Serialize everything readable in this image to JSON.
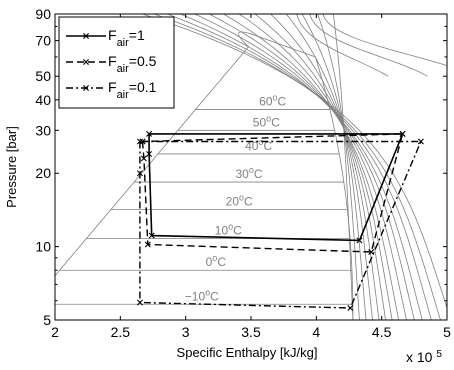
{
  "chart_data": {
    "type": "line",
    "title": "",
    "xlabel": "Specific Enthalpy [kJ/kg]",
    "ylabel": "Pressure [bar]",
    "x_multiplier": "x 10",
    "x_multiplier_exp": "5",
    "xlim": [
      2,
      5
    ],
    "ylim": [
      5,
      90
    ],
    "yscale": "log",
    "xticks": [
      2,
      2.5,
      3,
      3.5,
      4,
      4.5,
      5
    ],
    "xtick_labels": [
      "2",
      "2.5",
      "3",
      "3.5",
      "4",
      "4.5",
      "5"
    ],
    "yticks": [
      5,
      10,
      20,
      30,
      40,
      50,
      70,
      90
    ],
    "ytick_labels": [
      "5",
      "10",
      "20",
      "30",
      "40",
      "50",
      "70",
      "90"
    ],
    "grid": false,
    "legend_position": "top-left",
    "series": [
      {
        "name": "F",
        "sub": "air",
        "suffix": "=1",
        "style": "solid",
        "color": "#000000",
        "x": [
          2.72,
          2.72,
          2.74,
          4.33,
          4.66,
          2.72
        ],
        "y": [
          29.0,
          24.0,
          11.1,
          10.6,
          29.0,
          29.0
        ]
      },
      {
        "name": "F",
        "sub": "air",
        "suffix": "=0.5",
        "style": "dashed",
        "color": "#000000",
        "x": [
          2.67,
          2.68,
          2.71,
          4.42,
          4.66,
          2.67
        ],
        "y": [
          27.0,
          23.0,
          10.2,
          9.5,
          29.0,
          27.0
        ]
      },
      {
        "name": "F",
        "sub": "air",
        "suffix": "=0.1",
        "style": "dashdot",
        "color": "#000000",
        "x": [
          2.65,
          2.65,
          2.65,
          4.26,
          4.8,
          2.65
        ],
        "y": [
          27.0,
          20.0,
          5.9,
          5.6,
          27.0,
          27.0
        ]
      }
    ],
    "isotherms": [
      {
        "label": "60",
        "unit": "C",
        "p": 36.5
      },
      {
        "label": "50",
        "unit": "C",
        "p": 30.0
      },
      {
        "label": "40",
        "unit": "C",
        "p": 24.0
      },
      {
        "label": "30",
        "unit": "C",
        "p": 18.4
      },
      {
        "label": "20",
        "unit": "C",
        "p": 14.2
      },
      {
        "label": "10",
        "unit": "C",
        "p": 10.8
      },
      {
        "label": "0",
        "unit": "C",
        "p": 8.0
      },
      {
        "label": "−10",
        "unit": "C",
        "p": 5.8
      }
    ],
    "colors": {
      "background": "#ffffff",
      "curves": "#808080",
      "cycles": "#000000"
    }
  }
}
